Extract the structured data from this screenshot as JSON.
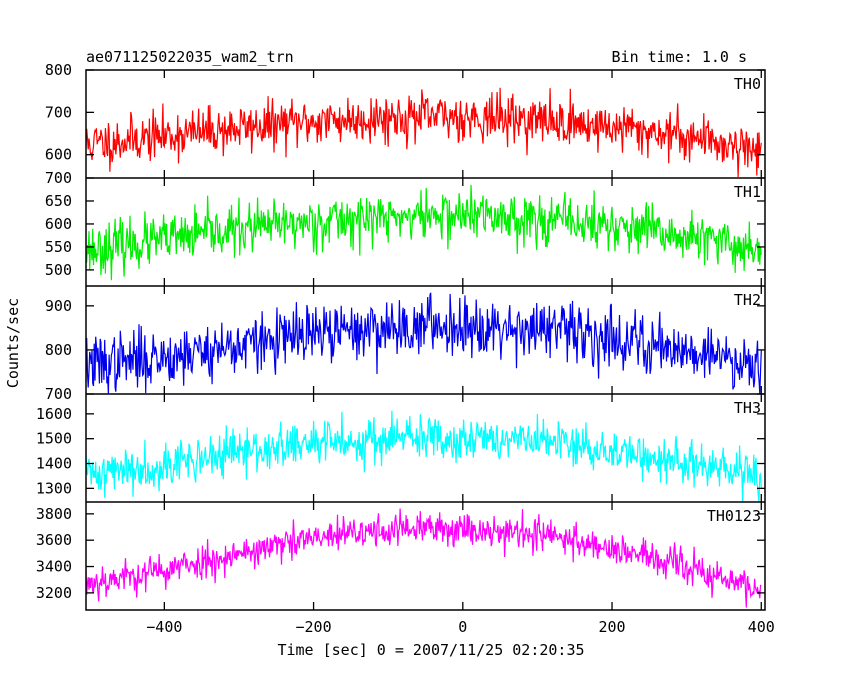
{
  "header": {
    "title_left": "ae071125022035_wam2_trn",
    "title_right": "Bin time: 1.0 s"
  },
  "axes": {
    "xlabel": "Time [sec] 0 = 2007/11/25 02:20:35",
    "ylabel": "Counts/sec"
  },
  "chart_data": {
    "type": "line",
    "x_range": [
      -505,
      405
    ],
    "x_ticks": [
      -400,
      -200,
      0,
      200,
      400
    ],
    "x_tick_labels": [
      "−400",
      "−200",
      "0",
      "200",
      "400"
    ],
    "bin_time_s": 1.0,
    "series": [
      {
        "name": "TH0",
        "color": "#ff0000",
        "ylim": [
          545,
          800
        ],
        "y_ticks": [
          600,
          700,
          800
        ],
        "y_tick_labels": [
          "600",
          "700",
          "800"
        ],
        "profile_x": [
          -500,
          -400,
          -300,
          -200,
          -100,
          0,
          100,
          200,
          300,
          400
        ],
        "profile_mean": [
          625,
          645,
          663,
          678,
          688,
          690,
          682,
          665,
          645,
          610
        ],
        "noise_sd": 28,
        "seed": 11
      },
      {
        "name": "TH1",
        "color": "#00ee00",
        "ylim": [
          465,
          700
        ],
        "y_ticks": [
          500,
          550,
          600,
          650,
          700
        ],
        "y_tick_labels": [
          "500",
          "550",
          "600",
          "650",
          "700"
        ],
        "profile_x": [
          -500,
          -400,
          -300,
          -200,
          -100,
          0,
          100,
          200,
          300,
          400
        ],
        "profile_mean": [
          545,
          565,
          588,
          605,
          615,
          620,
          612,
          595,
          570,
          545
        ],
        "noise_sd": 27,
        "seed": 23
      },
      {
        "name": "TH2",
        "color": "#0000ee",
        "ylim": [
          700,
          945
        ],
        "y_ticks": [
          700,
          800,
          900
        ],
        "y_tick_labels": [
          "700",
          "800",
          "900"
        ],
        "profile_x": [
          -500,
          -400,
          -300,
          -200,
          -100,
          0,
          100,
          200,
          300,
          400
        ],
        "profile_mean": [
          765,
          785,
          810,
          835,
          850,
          858,
          848,
          828,
          800,
          768
        ],
        "noise_sd": 33,
        "seed": 37
      },
      {
        "name": "TH3",
        "color": "#00ffff",
        "ylim": [
          1245,
          1680
        ],
        "y_ticks": [
          1300,
          1400,
          1500,
          1600
        ],
        "y_tick_labels": [
          "1300",
          "1400",
          "1500",
          "1600"
        ],
        "profile_x": [
          -500,
          -400,
          -300,
          -200,
          -100,
          0,
          100,
          200,
          300,
          400
        ],
        "profile_mean": [
          1360,
          1395,
          1445,
          1480,
          1500,
          1505,
          1490,
          1450,
          1400,
          1345
        ],
        "noise_sd": 45,
        "seed": 41
      },
      {
        "name": "TH0123",
        "color": "#ff00ff",
        "ylim": [
          3070,
          3890
        ],
        "y_ticks": [
          3200,
          3400,
          3600,
          3800
        ],
        "y_tick_labels": [
          "3200",
          "3400",
          "3600",
          "3800"
        ],
        "profile_x": [
          -500,
          -400,
          -300,
          -200,
          -100,
          0,
          100,
          200,
          300,
          400
        ],
        "profile_mean": [
          3280,
          3370,
          3500,
          3610,
          3680,
          3690,
          3650,
          3540,
          3390,
          3220
        ],
        "noise_sd": 65,
        "seed": 53
      }
    ]
  }
}
